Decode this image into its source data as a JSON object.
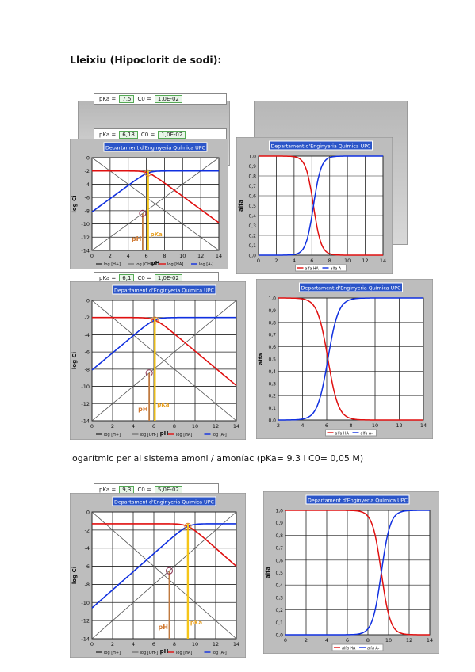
{
  "document": {
    "heading": "Lleixiu (Hipoclorit de sodi):",
    "caption": "logarítmic per al sistema amoni / amoníac (pKa= 9.3 i C0= 0,05 M)"
  },
  "chart_title": "Departament d'Enginyeria Química UPC",
  "axes": {
    "log_xlabel": "pH",
    "log_ylabel": "log Ci",
    "alpha_xlabel": "pH",
    "alpha_ylabel": "alfa"
  },
  "markers": {
    "ph": "pH",
    "pk": "pKa"
  },
  "header_fields": {
    "pka_label": "pKa =",
    "c0_label": "C0 =",
    "row1_pka": "7,5",
    "row1_c0": "1,0E-02",
    "row2_pka": "6,18",
    "row2_c0": "1,0E-02",
    "row3_pka": "6,1",
    "row3_c0": "1,0E-02",
    "row4_pka": "9,3",
    "row4_c0": "5,0E-02"
  },
  "legend": {
    "log": [
      "log [H+]",
      "log [OH-]",
      "log [HA]",
      "log [A-]"
    ],
    "alpha": [
      "alfa HA",
      "alfa A-"
    ]
  },
  "chart_data": [
    {
      "type": "line",
      "title": "Departament d'Enginyeria Química UPC",
      "xlabel": "pH",
      "ylabel": "log Ci",
      "xlim": [
        0,
        14
      ],
      "ylim": [
        -14,
        0
      ],
      "pKa": 6.18,
      "logC0": -2,
      "x": [
        0,
        2,
        4,
        6.18,
        8,
        10,
        12,
        14
      ]
    },
    {
      "type": "line",
      "title": "Departament d'Enginyeria Química UPC",
      "xlabel": "pH",
      "ylabel": "alfa",
      "xlim": [
        0,
        14
      ],
      "ylim": [
        0,
        1
      ],
      "pKa": 6.18,
      "x": [
        0,
        2,
        4,
        6,
        8,
        10,
        12,
        14
      ]
    },
    {
      "type": "line",
      "title": "Departament d'Enginyeria Química UPC",
      "xlabel": "pH",
      "ylabel": "log Ci",
      "xlim": [
        0,
        14
      ],
      "ylim": [
        -14,
        0
      ],
      "pKa": 6.1,
      "logC0": -2,
      "x": [
        0,
        2,
        4,
        6.1,
        8,
        10,
        12,
        14
      ]
    },
    {
      "type": "line",
      "title": "Departament d'Enginyeria Química UPC",
      "xlabel": "pH",
      "ylabel": "alfa",
      "xlim": [
        2,
        14
      ],
      "ylim": [
        0,
        1
      ],
      "pKa": 6.1,
      "x": [
        2,
        4,
        6,
        8,
        10,
        12,
        14
      ]
    },
    {
      "type": "line",
      "title": "Departament d'Enginyeria Química UPC",
      "xlabel": "pH",
      "ylabel": "log Ci",
      "xlim": [
        0,
        14
      ],
      "ylim": [
        -14,
        0
      ],
      "pKa": 9.3,
      "logC0": -1.3,
      "x": [
        0,
        2,
        4,
        6,
        8,
        9.3,
        10,
        12,
        14
      ]
    },
    {
      "type": "line",
      "title": "Departament d'Enginyeria Química UPC",
      "xlabel": "pH",
      "ylabel": "alfa",
      "xlim": [
        0,
        14
      ],
      "ylim": [
        0,
        1
      ],
      "pKa": 9.3,
      "x": [
        0,
        2,
        4,
        6,
        8,
        10,
        12,
        14
      ]
    }
  ]
}
